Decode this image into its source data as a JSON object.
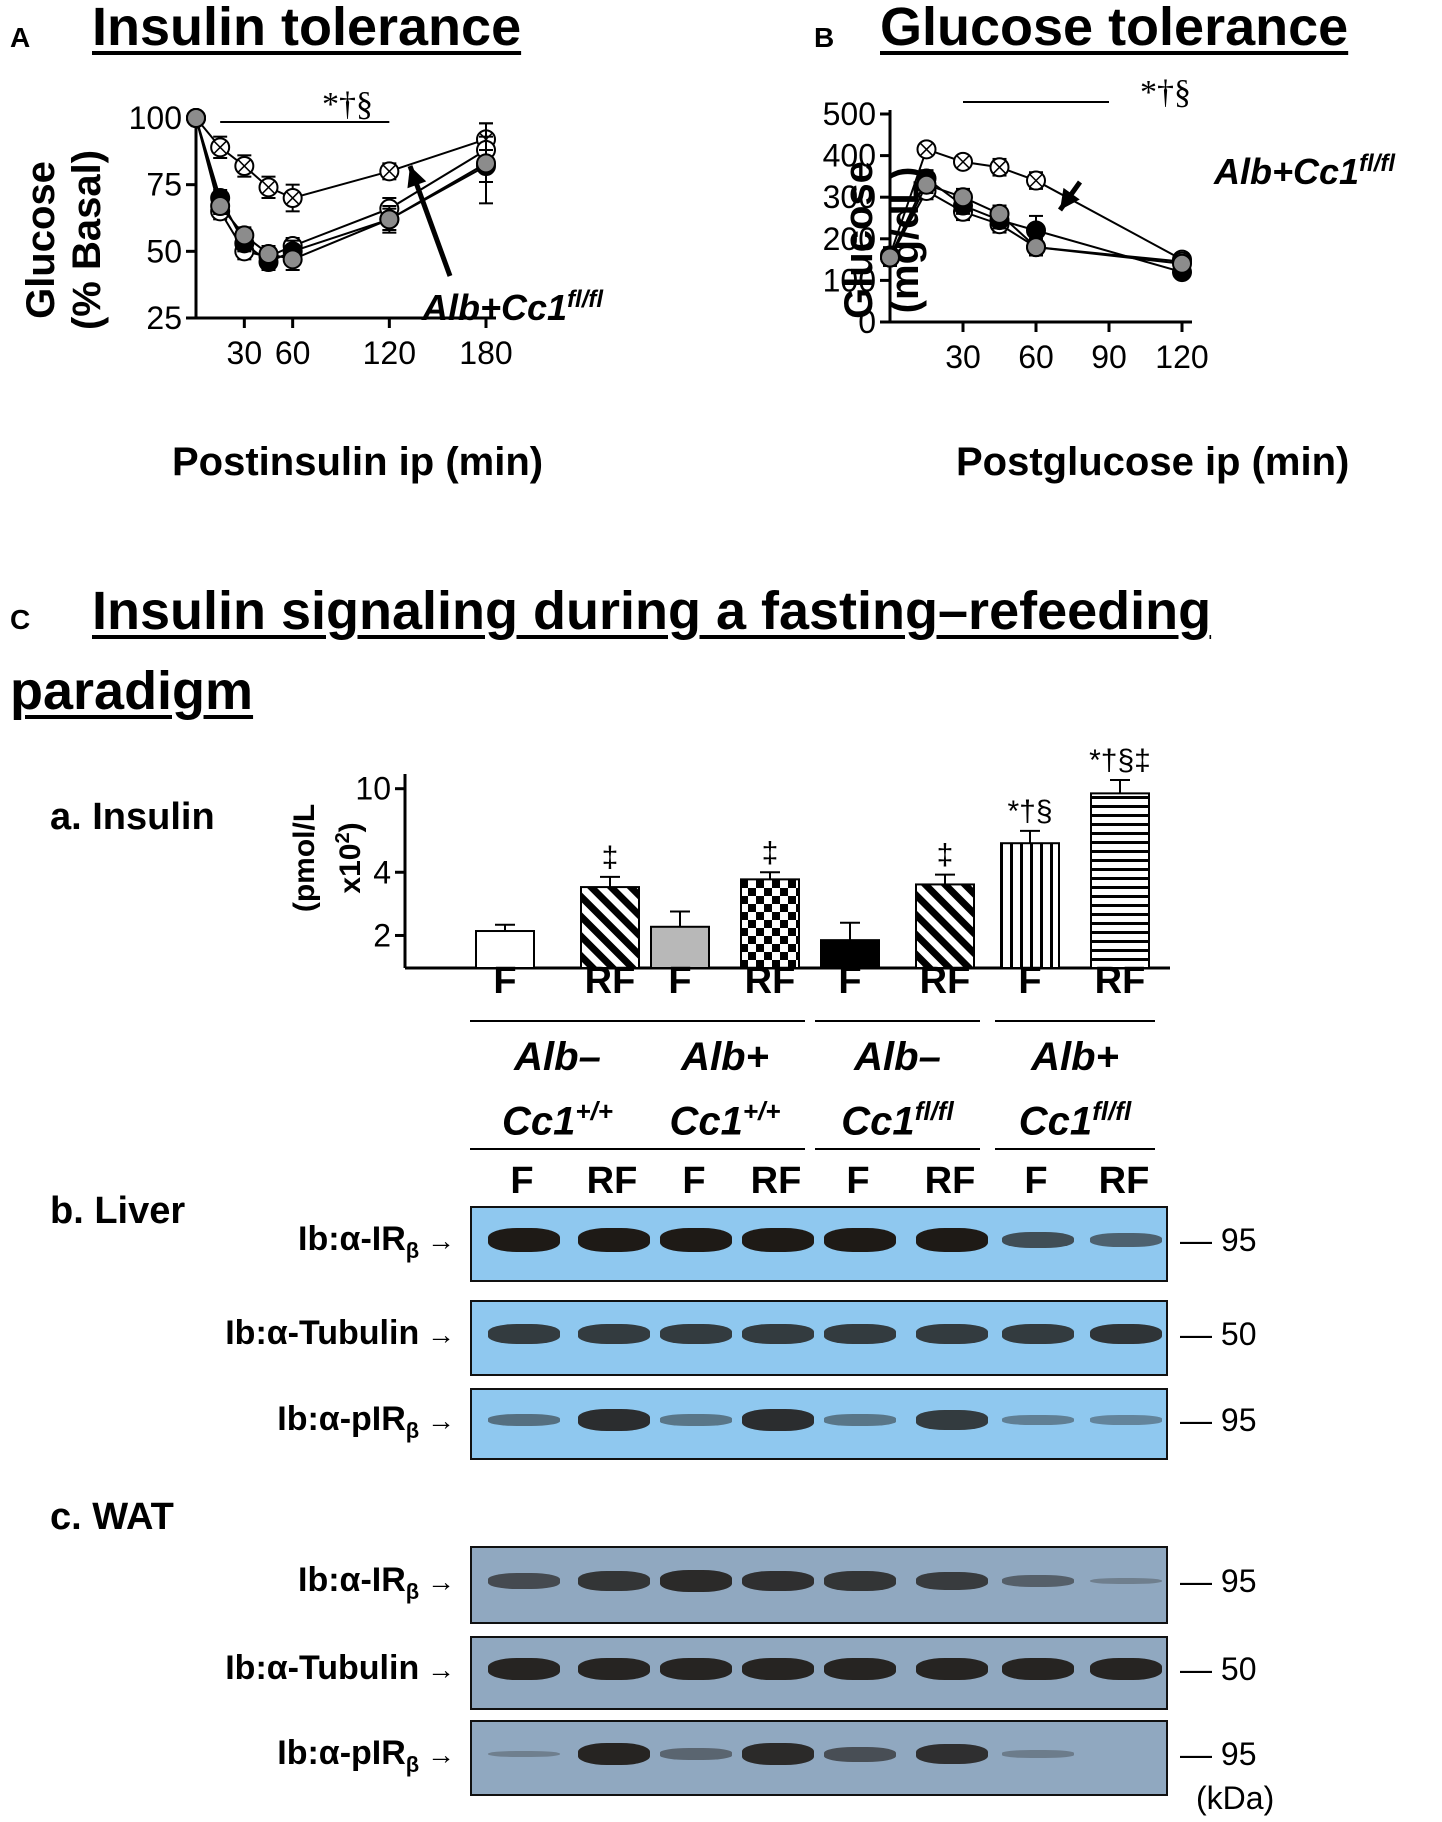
{
  "panels": {
    "a": {
      "letter": "A",
      "title": "Insulin tolerance",
      "ylabel_line1": "Glucose",
      "ylabel_line2": "(% Basal)",
      "xlabel": "Postinsulin ip (min)",
      "sig": "*†§",
      "annotation": "Alb+Cc1",
      "annotation_sup": "fl/fl"
    },
    "b": {
      "letter": "B",
      "title": "Glucose tolerance",
      "ylabel_line1": "Glucose",
      "ylabel_line2": "(mg/dL)",
      "xlabel": "Postglucose ip (min)",
      "sig": "*†§",
      "annotation": "Alb+Cc1",
      "annotation_sup": "fl/fl"
    },
    "c": {
      "letter": "C",
      "title_line1": "Insulin signaling during a fasting–refeeding",
      "title_line2": "paradigm",
      "insulin_label": "a. Insulin",
      "ylabel_line1": "(pmol/L",
      "ylabel_line2": "x10",
      "ylabel_sup": "2",
      "ylabel_close": ")",
      "liver_label": "b. Liver",
      "wat_label": "c. WAT"
    }
  },
  "lanes": {
    "f": "F",
    "rf": "RF"
  },
  "genotypes": [
    {
      "line1": "Alb–",
      "line2": "Cc1",
      "sup": "+/+"
    },
    {
      "line1": "Alb+",
      "line2": "Cc1",
      "sup": "+/+"
    },
    {
      "line1": "Alb–",
      "line2": "Cc1",
      "sup": "fl/fl"
    },
    {
      "line1": "Alb+",
      "line2": "Cc1",
      "sup": "fl/fl"
    }
  ],
  "blots": {
    "liver": [
      {
        "label": "Ib:α-IR",
        "sub": "β",
        "kda": "95",
        "bg": "blue",
        "intensity": [
          1,
          1,
          1,
          1,
          1,
          1,
          0.6,
          0.45
        ]
      },
      {
        "label": "Ib:α-Tubulin",
        "sub": "",
        "kda": "50",
        "bg": "blue",
        "intensity": [
          0.75,
          0.75,
          0.75,
          0.75,
          0.75,
          0.75,
          0.75,
          0.8
        ]
      },
      {
        "label": "Ib:α-pIR",
        "sub": "β",
        "kda": "95",
        "bg": "blue",
        "intensity": [
          0.35,
          0.85,
          0.3,
          0.85,
          0.3,
          0.75,
          0.22,
          0.18
        ]
      }
    ],
    "wat": [
      {
        "label": "Ib:α-IR",
        "sub": "β",
        "kda": "95",
        "bg": "grey",
        "intensity": [
          0.55,
          0.75,
          0.85,
          0.8,
          0.75,
          0.7,
          0.35,
          0.05
        ]
      },
      {
        "label": "Ib:α-Tubulin",
        "sub": "",
        "kda": "50",
        "bg": "grey",
        "intensity": [
          0.9,
          0.9,
          0.9,
          0.9,
          0.9,
          0.9,
          0.9,
          0.9
        ]
      },
      {
        "label": "Ib:α-pIR",
        "sub": "β",
        "kda": "95",
        "bg": "grey",
        "intensity": [
          0.05,
          0.9,
          0.3,
          0.85,
          0.5,
          0.8,
          0.08,
          0.0
        ]
      }
    ],
    "kda_unit": "(kDa)"
  },
  "chart_data": [
    {
      "type": "line",
      "title": "Insulin tolerance",
      "xlabel": "Postinsulin ip (min)",
      "ylabel": "Glucose (% Basal)",
      "ylim": [
        25,
        100
      ],
      "yticks": [
        25,
        50,
        75,
        100
      ],
      "xticks": [
        30,
        60,
        120,
        180
      ],
      "xlim": [
        0,
        180
      ],
      "x": [
        0,
        15,
        30,
        45,
        60,
        120,
        180
      ],
      "series": [
        {
          "marker": "crossed-open",
          "values": [
            100,
            89,
            82,
            74,
            70,
            80,
            92
          ],
          "err": [
            1,
            4,
            4,
            4,
            5,
            3,
            6
          ]
        },
        {
          "marker": "open",
          "values": [
            100,
            65,
            50,
            48,
            52,
            66,
            88
          ],
          "err": [
            1,
            3,
            3,
            3,
            3,
            4,
            5
          ]
        },
        {
          "marker": "black",
          "values": [
            100,
            70,
            53,
            46,
            50,
            62,
            82
          ],
          "err": [
            1,
            3,
            3,
            3,
            4,
            4,
            6
          ]
        },
        {
          "marker": "grey",
          "values": [
            100,
            67,
            56,
            49,
            47,
            62,
            83
          ],
          "err": [
            1,
            3,
            3,
            3,
            4,
            5,
            15
          ]
        }
      ],
      "annotations": [
        "*†§",
        "Alb+Cc1fl/fl"
      ]
    },
    {
      "type": "line",
      "title": "Glucose tolerance",
      "xlabel": "Postglucose ip (min)",
      "ylabel": "Glucose (mg/dL)",
      "ylim": [
        0,
        500
      ],
      "yticks": [
        0,
        100,
        200,
        300,
        400,
        500
      ],
      "xticks": [
        30,
        60,
        90,
        120
      ],
      "xlim": [
        0,
        120
      ],
      "x": [
        0,
        15,
        30,
        45,
        60,
        120
      ],
      "series": [
        {
          "marker": "crossed-open",
          "values": [
            160,
            415,
            385,
            372,
            340,
            150
          ],
          "err": [
            20,
            15,
            15,
            20,
            20,
            15
          ]
        },
        {
          "marker": "open",
          "values": [
            155,
            315,
            265,
            235,
            180,
            145
          ],
          "err": [
            20,
            20,
            20,
            20,
            20,
            15
          ]
        },
        {
          "marker": "black",
          "values": [
            155,
            345,
            280,
            245,
            220,
            120
          ],
          "err": [
            20,
            20,
            20,
            20,
            35,
            15
          ]
        },
        {
          "marker": "grey",
          "values": [
            155,
            330,
            300,
            260,
            180,
            140
          ],
          "err": [
            20,
            20,
            20,
            20,
            20,
            15
          ]
        }
      ],
      "annotations": [
        "*†§",
        "Alb+Cc1fl/fl"
      ]
    },
    {
      "type": "bar",
      "title": "a. Insulin",
      "ylabel": "(pmol/L x10²)",
      "yscale": "log",
      "ylim": [
        1.4,
        11
      ],
      "yticks": [
        2,
        4,
        10
      ],
      "categories": [
        "F",
        "RF",
        "F",
        "RF",
        "F",
        "RF",
        "F",
        "RF"
      ],
      "groups": [
        "Alb–Cc1+/+",
        "Alb+Cc1+/+",
        "Alb–Cc1fl/fl",
        "Alb+Cc1fl/fl"
      ],
      "values": [
        2.1,
        3.4,
        2.2,
        3.7,
        1.9,
        3.5,
        5.5,
        9.5
      ],
      "err": [
        0.15,
        0.4,
        0.4,
        0.3,
        0.4,
        0.4,
        0.8,
        1.5
      ],
      "fills": [
        "white",
        "diag",
        "grey",
        "checker",
        "black",
        "diag",
        "vlines",
        "hlines"
      ],
      "significance": [
        "",
        "‡",
        "",
        "‡",
        "",
        "‡",
        "*†§",
        "*†§‡"
      ]
    }
  ]
}
